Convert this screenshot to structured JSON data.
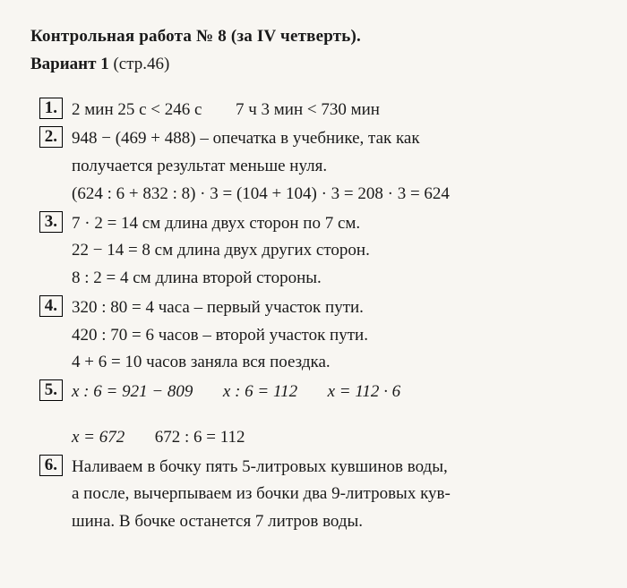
{
  "header": {
    "title": "Контрольная работа № 8 (за IV четверть).",
    "variant_label": "Вариант 1",
    "page_ref": "(стр.46)"
  },
  "items": {
    "n1": {
      "num": "1.",
      "line1a": "2 мин 25 с < 246 с",
      "line1b": "7 ч 3 мин < 730 мин"
    },
    "n2": {
      "num": "2.",
      "line1": "948 − (469 + 488)  – опечатка в учебнике, так как",
      "line2": "получается результат меньше нуля.",
      "line3": "(624 : 6 + 832 : 8) · 3 = (104 + 104) · 3 = 208 · 3 = 624"
    },
    "n3": {
      "num": "3.",
      "line1": "7 · 2 = 14 см длина двух сторон по 7 см.",
      "line2": "22 − 14 = 8 см длина двух других сторон.",
      "line3": "8 : 2 = 4 см длина второй стороны."
    },
    "n4": {
      "num": "4.",
      "line1": "320 : 80 = 4 часа – первый участок пути.",
      "line2": "420 : 70 = 6 часов – второй участок пути.",
      "line3": "4 + 6 = 10 часов заняла вся поездка."
    },
    "n5": {
      "num": "5.",
      "p1": "x : 6 = 921 − 809",
      "p2": "x : 6 = 112",
      "p3": "x = 112 · 6",
      "p4": "x = 672",
      "p5": "672 : 6 = 112"
    },
    "n6": {
      "num": "6.",
      "line1": "Наливаем в бочку пять 5-литровых кувшинов воды,",
      "line2": "а после, вычерпываем из бочки два 9-литровых кув-",
      "line3": "шина. В бочке останется 7 литров воды."
    }
  }
}
